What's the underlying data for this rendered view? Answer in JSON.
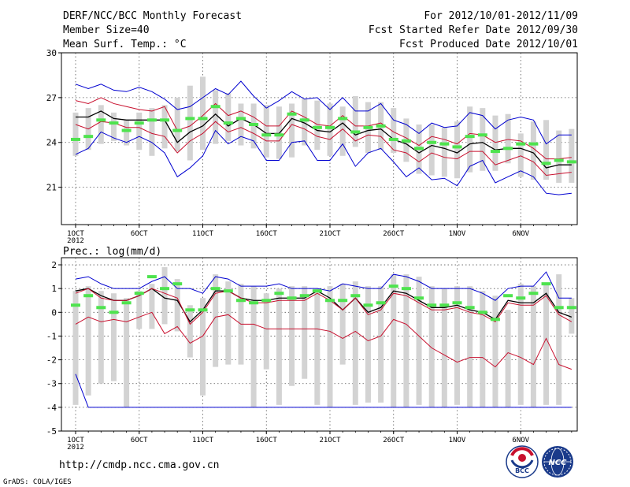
{
  "header": {
    "title": "DERF/NCC/BCC Monthly Forecast",
    "member": "Member Size=40",
    "variable": "Mean Surf. Temp.: °C",
    "period": "For 2012/10/01-2012/11/09",
    "started": "Fcst Started Refer Date 2012/09/30",
    "produced": "Fcst Produced Date 2012/10/01"
  },
  "footer": {
    "url": "http://cmdp.ncc.cma.gov.cn",
    "grads": "GrADS: COLA/IGES",
    "logo_bcc": "BCC",
    "logo_ncc": "NCC"
  },
  "colors": {
    "bar": "#d3d3d3",
    "green": "#4ee34e",
    "blue": "#0000d0",
    "red": "#c8102e",
    "black": "#000000",
    "grid": "#555555"
  },
  "chart_data": [
    {
      "type": "line",
      "title": "Mean Surf. Temp.: °C",
      "ylim": [
        18.5,
        30
      ],
      "yticks": [
        21,
        24,
        27,
        30
      ],
      "days": 40,
      "x_ticks": [
        {
          "day": 1,
          "label": "1OCT",
          "sub": "2012"
        },
        {
          "day": 6,
          "label": "6OCT"
        },
        {
          "day": 11,
          "label": "11OCT"
        },
        {
          "day": 16,
          "label": "16OCT"
        },
        {
          "day": 21,
          "label": "21OCT"
        },
        {
          "day": 26,
          "label": "26OCT"
        },
        {
          "day": 31,
          "label": "1NOV"
        },
        {
          "day": 36,
          "label": "6NOV"
        }
      ],
      "bar_top": [
        26.0,
        26.3,
        26.5,
        26.0,
        25.5,
        26.0,
        26.3,
        26.5,
        27.0,
        27.8,
        28.4,
        27.5,
        27.3,
        26.6,
        26.6,
        26.5,
        26.4,
        26.6,
        26.9,
        26.8,
        26.6,
        26.4,
        27.1,
        26.7,
        26.7,
        26.3,
        25.6,
        25.2,
        25.2,
        25.0,
        25.4,
        26.4,
        26.3,
        25.8,
        25.9,
        24.6,
        25.4,
        25.5,
        24.8,
        24.9
      ],
      "bar_bottom": [
        23.1,
        23.5,
        23.9,
        24.1,
        23.8,
        23.5,
        23.1,
        23.6,
        23.4,
        22.8,
        23.5,
        23.9,
        24.1,
        23.8,
        23.6,
        23.0,
        22.9,
        23.0,
        23.8,
        23.5,
        23.1,
        23.1,
        23.7,
        23.3,
        23.5,
        23.3,
        22.7,
        21.9,
        21.8,
        21.7,
        21.6,
        22.0,
        22.1,
        22.1,
        22.6,
        21.7,
        21.5,
        21.5,
        21.3,
        21.3
      ],
      "series": [
        {
          "name": "member_mean",
          "color": "#4ee34e",
          "values": [
            24.2,
            24.4,
            25.5,
            25.3,
            24.8,
            25.3,
            25.5,
            25.5,
            24.8,
            25.6,
            25.6,
            26.4,
            25.3,
            25.6,
            25.2,
            24.5,
            24.5,
            25.9,
            25.5,
            25.0,
            25.0,
            25.6,
            24.7,
            25.0,
            25.1,
            24.2,
            24.1,
            23.6,
            24.0,
            23.9,
            23.7,
            24.4,
            24.5,
            23.4,
            23.6,
            23.9,
            23.9,
            22.6,
            22.8,
            22.7
          ]
        },
        {
          "name": "max",
          "color": "#0000d0",
          "values": [
            27.9,
            27.6,
            27.9,
            27.5,
            27.4,
            27.7,
            27.4,
            26.9,
            26.2,
            26.4,
            27.0,
            27.6,
            27.2,
            28.1,
            27.1,
            26.3,
            26.8,
            27.4,
            26.9,
            27.0,
            26.2,
            27.0,
            26.1,
            26.1,
            26.6,
            25.5,
            25.2,
            24.6,
            25.3,
            25.0,
            25.1,
            26.0,
            25.8,
            24.9,
            25.5,
            25.7,
            25.5,
            23.9,
            24.5,
            24.5
          ]
        },
        {
          "name": "upper",
          "color": "#c8102e",
          "values": [
            26.8,
            26.6,
            27.0,
            26.6,
            26.4,
            26.2,
            26.1,
            26.4,
            24.8,
            25.1,
            25.8,
            26.6,
            25.8,
            26.1,
            25.7,
            25.1,
            25.1,
            26.1,
            25.7,
            25.2,
            25.1,
            25.8,
            25.1,
            25.1,
            25.3,
            24.7,
            24.3,
            23.8,
            24.4,
            24.2,
            23.9,
            24.6,
            24.5,
            24.0,
            24.2,
            24.1,
            23.6,
            22.9,
            22.9,
            23.0
          ]
        },
        {
          "name": "mean",
          "color": "#000000",
          "values": [
            25.7,
            25.7,
            26.1,
            25.6,
            25.5,
            25.5,
            25.5,
            25.5,
            24.0,
            24.7,
            25.1,
            25.9,
            25.1,
            25.6,
            25.2,
            24.6,
            24.6,
            25.6,
            25.3,
            24.8,
            24.7,
            25.3,
            24.5,
            24.8,
            24.9,
            24.2,
            23.9,
            23.3,
            23.8,
            23.6,
            23.3,
            23.9,
            24.0,
            23.5,
            23.6,
            23.6,
            23.3,
            22.3,
            22.5,
            22.5
          ]
        },
        {
          "name": "lower",
          "color": "#c8102e",
          "values": [
            25.2,
            24.9,
            25.4,
            25.3,
            25.0,
            25.0,
            24.6,
            24.4,
            23.3,
            24.1,
            24.6,
            25.4,
            24.7,
            25.0,
            24.6,
            24.1,
            24.1,
            25.2,
            24.9,
            24.4,
            24.2,
            24.9,
            24.1,
            24.5,
            24.4,
            23.5,
            23.3,
            22.7,
            23.3,
            23.0,
            22.9,
            23.4,
            23.4,
            22.5,
            22.8,
            23.1,
            22.7,
            21.8,
            21.9,
            22.0
          ]
        },
        {
          "name": "min",
          "color": "#0000d0",
          "values": [
            23.2,
            23.6,
            24.7,
            24.3,
            24.0,
            24.4,
            24.0,
            23.3,
            21.7,
            22.3,
            23.1,
            24.8,
            23.9,
            24.4,
            24.1,
            22.8,
            22.8,
            24.0,
            24.1,
            22.8,
            22.8,
            23.9,
            22.4,
            23.3,
            23.6,
            22.7,
            21.7,
            22.3,
            21.5,
            21.6,
            21.1,
            22.4,
            22.8,
            21.3,
            21.7,
            22.1,
            21.7,
            20.6,
            20.5,
            20.6
          ]
        }
      ]
    },
    {
      "type": "line",
      "title": "Prec.: log(mm/d)",
      "ylim": [
        -5,
        2.3
      ],
      "yticks": [
        -5,
        -4,
        -3,
        -2,
        -1,
        0,
        1,
        2
      ],
      "days": 40,
      "x_ticks": [
        {
          "day": 1,
          "label": "1OCT",
          "sub": "2012"
        },
        {
          "day": 6,
          "label": "6OCT"
        },
        {
          "day": 11,
          "label": "11OCT"
        },
        {
          "day": 16,
          "label": "16OCT"
        },
        {
          "day": 21,
          "label": "21OCT"
        },
        {
          "day": 26,
          "label": "26OCT"
        },
        {
          "day": 31,
          "label": "1NOV"
        },
        {
          "day": 36,
          "label": "6NOV"
        }
      ],
      "bar_top": [
        0.9,
        1.1,
        0.9,
        0.8,
        0.6,
        0.9,
        1.2,
        1.9,
        1.4,
        0.3,
        0.6,
        1.6,
        1.3,
        1.2,
        1.1,
        0.8,
        1.0,
        1.1,
        1.1,
        1.0,
        1.1,
        1.2,
        1.3,
        1.1,
        1.1,
        1.6,
        1.6,
        1.5,
        1.1,
        1.0,
        1.1,
        1.1,
        0.9,
        0.7,
        0.1,
        1.2,
        1.1,
        1.2,
        1.6,
        0.6
      ],
      "bar_bottom": [
        -3.9,
        -3.5,
        -3.0,
        -2.9,
        -4.0,
        -0.7,
        -0.7,
        -0.5,
        -0.8,
        -1.9,
        -3.5,
        -2.3,
        -2.2,
        -2.2,
        -4.0,
        -2.4,
        -3.9,
        -3.1,
        -2.8,
        -3.9,
        -4.0,
        -2.2,
        -3.9,
        -3.8,
        -3.8,
        -4.0,
        -4.0,
        -3.9,
        -4.0,
        -4.0,
        -3.9,
        -4.0,
        -4.0,
        -4.0,
        -4.0,
        -3.9,
        -4.0,
        -3.9,
        -3.9,
        -0.9
      ],
      "series": [
        {
          "name": "member_mean",
          "color": "#4ee34e",
          "values": [
            0.3,
            0.7,
            0.2,
            0.0,
            0.4,
            0.8,
            1.5,
            1.0,
            1.2,
            0.1,
            0.1,
            1.0,
            0.9,
            0.5,
            0.4,
            0.5,
            0.8,
            0.6,
            0.7,
            0.9,
            0.5,
            0.5,
            0.7,
            0.3,
            0.4,
            1.1,
            1.0,
            0.6,
            0.3,
            0.3,
            0.4,
            0.2,
            0.0,
            -0.3,
            0.7,
            0.6,
            0.8,
            1.2,
            0.2,
            0.2
          ]
        },
        {
          "name": "max",
          "color": "#0000d0",
          "values": [
            1.4,
            1.5,
            1.2,
            1.0,
            1.0,
            1.0,
            1.3,
            1.5,
            1.0,
            1.0,
            0.8,
            1.5,
            1.4,
            1.1,
            1.1,
            1.1,
            1.2,
            1.0,
            1.0,
            1.0,
            0.9,
            1.2,
            1.1,
            1.0,
            1.0,
            1.6,
            1.5,
            1.3,
            1.0,
            1.0,
            1.0,
            1.0,
            0.8,
            0.5,
            1.0,
            1.1,
            1.1,
            1.7,
            0.6,
            0.6
          ]
        },
        {
          "name": "mean",
          "color": "#000000",
          "values": [
            0.9,
            1.0,
            0.7,
            0.5,
            0.5,
            0.7,
            1.0,
            0.6,
            0.5,
            -0.4,
            0.1,
            0.9,
            0.9,
            0.6,
            0.5,
            0.5,
            0.6,
            0.6,
            0.6,
            0.9,
            0.6,
            0.1,
            0.6,
            0.0,
            0.2,
            0.9,
            0.8,
            0.5,
            0.2,
            0.2,
            0.3,
            0.1,
            0.0,
            -0.3,
            0.5,
            0.4,
            0.4,
            0.8,
            0.0,
            -0.2
          ]
        },
        {
          "name": "upper",
          "color": "#c8102e",
          "values": [
            0.8,
            1.0,
            0.6,
            0.5,
            0.5,
            0.7,
            1.0,
            0.8,
            0.6,
            -0.5,
            0.0,
            0.8,
            0.9,
            0.6,
            0.4,
            0.4,
            0.5,
            0.5,
            0.5,
            0.8,
            0.5,
            0.1,
            0.6,
            -0.1,
            0.1,
            0.8,
            0.7,
            0.4,
            0.1,
            0.1,
            0.2,
            0.0,
            -0.1,
            -0.4,
            0.4,
            0.3,
            0.3,
            0.7,
            -0.1,
            -0.4
          ]
        },
        {
          "name": "lower",
          "color": "#c8102e",
          "values": [
            -0.5,
            -0.2,
            -0.4,
            -0.3,
            -0.4,
            -0.2,
            0.0,
            -0.9,
            -0.6,
            -1.3,
            -1.0,
            -0.2,
            -0.1,
            -0.5,
            -0.5,
            -0.7,
            -0.7,
            -0.7,
            -0.7,
            -0.7,
            -0.8,
            -1.1,
            -0.8,
            -1.2,
            -1.0,
            -0.3,
            -0.5,
            -1.0,
            -1.5,
            -1.8,
            -2.1,
            -1.9,
            -1.9,
            -2.3,
            -1.7,
            -1.9,
            -2.2,
            -1.1,
            -2.2,
            -2.4
          ]
        },
        {
          "name": "min",
          "color": "#0000d0",
          "values": [
            -2.6,
            -4.0,
            -4.0,
            -4.0,
            -4.0,
            -4.0,
            -4.0,
            -4.0,
            -4.0,
            -4.0,
            -4.0,
            -4.0,
            -4.0,
            -4.0,
            -4.0,
            -4.0,
            -4.0,
            -4.0,
            -4.0,
            -4.0,
            -4.0,
            -4.0,
            -4.0,
            -4.0,
            -4.0,
            -4.0,
            -4.0,
            -4.0,
            -4.0,
            -4.0,
            -4.0,
            -4.0,
            -4.0,
            -4.0,
            -4.0,
            -4.0,
            -4.0,
            -4.0,
            -4.0,
            -4.0
          ]
        }
      ]
    }
  ]
}
